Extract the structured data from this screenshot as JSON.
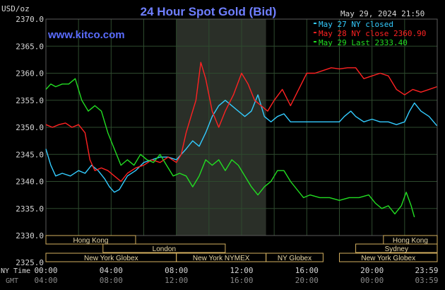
{
  "chart_data": {
    "type": "line",
    "title": "24 Hour Spot Gold (Bid)",
    "ylabel": "USD/oz",
    "date": "May 29, 2024 21:50",
    "watermark": "www.kitco.com",
    "ylim": [
      2325,
      2370
    ],
    "yticks": [
      "2370.0",
      "2365.0",
      "2360.0",
      "2355.0",
      "2350.0",
      "2345.0",
      "2340.0",
      "2335.0",
      "2330.0",
      "2325.0"
    ],
    "xticks_ny": [
      "00:00",
      "04:00",
      "08:00",
      "12:00",
      "16:00",
      "20:00",
      "23:59"
    ],
    "xticks_gmt": [
      "04:00",
      "08:00",
      "12:00",
      "16:00",
      "20:00",
      "00:00",
      "03:59"
    ],
    "x_label_ny": "NY Time",
    "x_label_gmt": "GMT",
    "legend": [
      {
        "label": "May 27 NY closed",
        "color": "#33ccff"
      },
      {
        "label": "May 28 NY close 2360.90",
        "color": "#ff2222"
      },
      {
        "label": "May 29 Last 2333.40",
        "color": "#22dd22"
      }
    ],
    "series": [
      {
        "name": "May 27 NY closed",
        "color": "#33ccff",
        "x": [
          0,
          0.3,
          0.6,
          1,
          1.5,
          2,
          2.4,
          2.8,
          3.2,
          3.6,
          3.9,
          4.2,
          4.5,
          5,
          5.5,
          6,
          6.5,
          7,
          7.5,
          8,
          8.3,
          8.6,
          9,
          9.4,
          9.8,
          10.2,
          10.6,
          11,
          11.4,
          11.8,
          12.2,
          12.6,
          13,
          13.4,
          13.8,
          14.2,
          14.6,
          15,
          15.6,
          16,
          17,
          17.5,
          18,
          18.3,
          18.7,
          19,
          19.5,
          20,
          20.5,
          21,
          21.5,
          22,
          22.3,
          22.6,
          23,
          23.5,
          23.98
        ],
        "y": [
          2346,
          2343,
          2341,
          2341.5,
          2341,
          2342,
          2341.5,
          2343,
          2342,
          2340.5,
          2339,
          2338,
          2338.5,
          2341,
          2342,
          2343.5,
          2344,
          2344.5,
          2344.5,
          2344,
          2345,
          2346,
          2347.5,
          2346.5,
          2349,
          2352,
          2354,
          2355,
          2354,
          2353,
          2352,
          2353,
          2356,
          2352,
          2351,
          2352,
          2352.5,
          2351,
          2351,
          2351,
          2351,
          2351,
          2351,
          2352,
          2353,
          2352,
          2351,
          2351.5,
          2351,
          2351,
          2350.5,
          2351,
          2353,
          2354.5,
          2353,
          2352,
          2350.3
        ]
      },
      {
        "name": "May 28 NY close 2360.90",
        "color": "#ff2222",
        "x": [
          0,
          0.4,
          0.8,
          1.2,
          1.6,
          2,
          2.4,
          2.7,
          3,
          3.4,
          3.8,
          4.2,
          4.6,
          5,
          5.5,
          6,
          6.5,
          7,
          7.5,
          8,
          8.3,
          8.6,
          8.9,
          9.2,
          9.5,
          9.8,
          10.2,
          10.6,
          11,
          11.5,
          12,
          12.4,
          12.8,
          13.2,
          13.6,
          14,
          14.5,
          15,
          15.5,
          16,
          16.5,
          17,
          17.5,
          18,
          18.5,
          19,
          19.5,
          20,
          20.5,
          21,
          21.5,
          22,
          22.5,
          23,
          23.5,
          23.98
        ],
        "y": [
          2350.5,
          2350,
          2350.5,
          2350.8,
          2350,
          2350.5,
          2349,
          2344,
          2342,
          2342.5,
          2342,
          2341,
          2340,
          2341.5,
          2342.5,
          2343,
          2344,
          2343.5,
          2344.5,
          2343.5,
          2345,
          2349,
          2352,
          2355,
          2362,
          2359,
          2353,
          2350,
          2353,
          2356,
          2360,
          2358,
          2355,
          2354,
          2353,
          2355,
          2357,
          2354,
          2357,
          2360,
          2360,
          2360.5,
          2361,
          2360.8,
          2361,
          2361,
          2359,
          2359.5,
          2360,
          2359.5,
          2357,
          2356,
          2357,
          2356.5,
          2357,
          2357.5
        ]
      },
      {
        "name": "May 29 Last 2333.40",
        "color": "#22dd22",
        "x": [
          0,
          0.3,
          0.6,
          1,
          1.4,
          1.8,
          2.2,
          2.6,
          3,
          3.4,
          3.8,
          4.2,
          4.6,
          5,
          5.4,
          5.8,
          6.2,
          6.6,
          7,
          7.4,
          7.8,
          8.2,
          8.6,
          9,
          9.4,
          9.8,
          10.2,
          10.6,
          11,
          11.4,
          11.8,
          12.2,
          12.6,
          13,
          13.4,
          13.8,
          14.2,
          14.6,
          15,
          15.4,
          15.8,
          16.2,
          16.8,
          17.4,
          18,
          18.6,
          19.2,
          19.8,
          20.2,
          20.6,
          21,
          21.4,
          21.8,
          22.1,
          22.4,
          22.6
        ],
        "y": [
          2357,
          2358,
          2357.5,
          2358,
          2358,
          2359,
          2355,
          2353,
          2354,
          2353,
          2349,
          2346,
          2343,
          2344,
          2343,
          2345,
          2344,
          2343.5,
          2345,
          2343,
          2341,
          2341.5,
          2341,
          2339,
          2341,
          2344,
          2343,
          2344,
          2342,
          2344,
          2343,
          2341,
          2339,
          2337.5,
          2339,
          2340,
          2342,
          2342,
          2340,
          2338.5,
          2337,
          2337.5,
          2337,
          2337,
          2336.5,
          2337,
          2337,
          2337.5,
          2336,
          2335,
          2335.5,
          2334,
          2335.5,
          2338,
          2335.5,
          2333.4
        ]
      }
    ],
    "sessions": [
      {
        "label": "Hong Kong",
        "row": 0,
        "start": 0,
        "end": 5.5
      },
      {
        "label": "Hong Kong",
        "row": 0,
        "start": 20.7,
        "end": 24
      },
      {
        "label": "London",
        "row": 1,
        "start": 3.5,
        "end": 11.0
      },
      {
        "label": "Sydney",
        "row": 1,
        "start": 19.0,
        "end": 24
      },
      {
        "label": "New York Globex",
        "row": 2,
        "start": 0,
        "end": 8.0
      },
      {
        "label": "New York NYMEX",
        "row": 2,
        "start": 8.0,
        "end": 13.5
      },
      {
        "label": "NY Globex",
        "row": 2,
        "start": 13.5,
        "end": 17.0
      },
      {
        "label": "New York Globex",
        "row": 2,
        "start": 18.0,
        "end": 24
      }
    ],
    "highlight_range": [
      8.0,
      13.5
    ],
    "colors": {
      "background": "#000000",
      "grid": "#2e4a2e",
      "highlight": "#2a2f28",
      "title": "#6f7fff",
      "watermark": "#5a6cff",
      "axis_text": "#d8d8d8",
      "session_box": "#d4b060",
      "session_text": "#e8d8a8"
    }
  }
}
